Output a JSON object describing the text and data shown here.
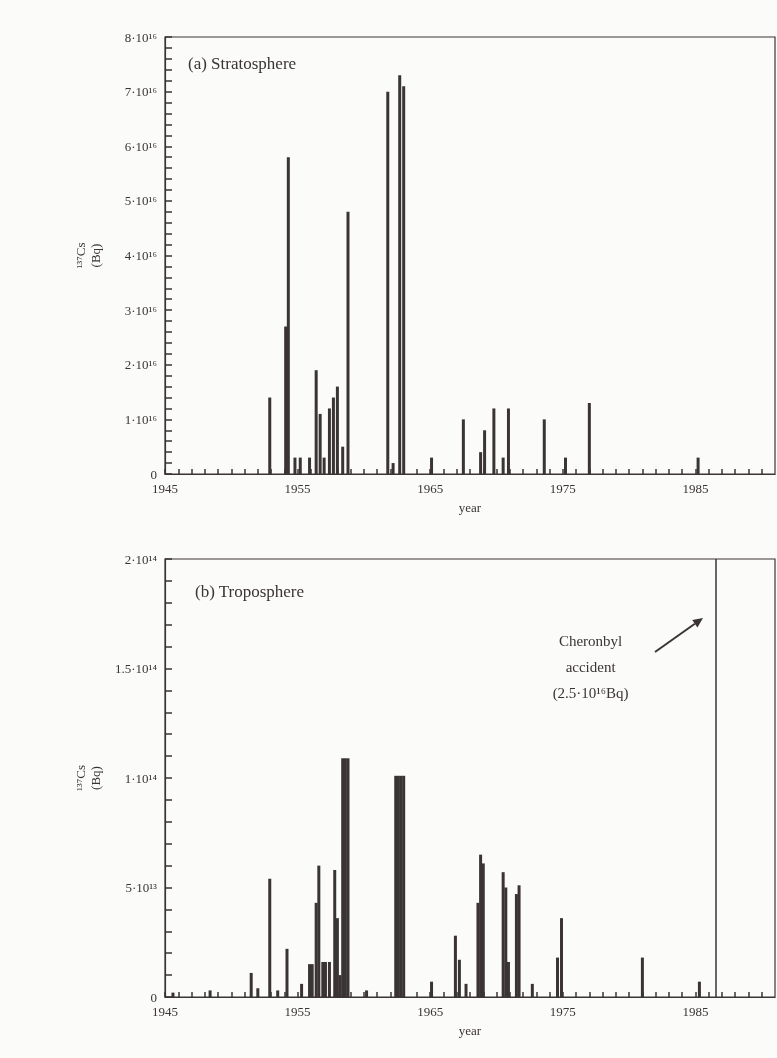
{
  "chart_data": [
    {
      "type": "bar",
      "title": "(a) Stratosphere",
      "xlabel": "year",
      "ylabel": "¹³⁷Cs\n(Bq)",
      "color": "#3a3434",
      "x": [
        1952.9,
        1954.1,
        1954.3,
        1954.8,
        1955.2,
        1955.9,
        1956.4,
        1956.7,
        1957.0,
        1957.4,
        1957.7,
        1958.0,
        1958.4,
        1958.8,
        1961.8,
        1962.2,
        1962.7,
        1963.0,
        1965.1,
        1967.5,
        1968.8,
        1969.1,
        1969.8,
        1970.5,
        1970.9,
        1973.6,
        1975.2,
        1977.0,
        1985.2
      ],
      "values": [
        1.4e+16,
        2.7e+16,
        5.8e+16,
        3000000000000000.0,
        3000000000000000.0,
        3000000000000000.0,
        1.9e+16,
        1.1e+16,
        3000000000000000.0,
        1.2e+16,
        1.4e+16,
        1.6e+16,
        5000000000000000.0,
        4.8e+16,
        7e+16,
        2000000000000000.0,
        7.3e+16,
        7.1e+16,
        3000000000000000.0,
        1e+16,
        4000000000000000.0,
        8000000000000000.0,
        1.2e+16,
        3000000000000000.0,
        1.2e+16,
        1e+16,
        3000000000000000.0,
        1.3e+16,
        3000000000000000.0
      ],
      "xlim": [
        1945,
        1991
      ],
      "xticks": [
        1945,
        {
          "value": 1946,
          "label": null
        },
        {
          "value": 1947,
          "label": null
        },
        {
          "value": 1948,
          "label": null
        },
        {
          "value": 1949,
          "label": null
        },
        {
          "value": 1950,
          "label": null
        },
        {
          "value": 1951,
          "label": null
        },
        {
          "value": 1952,
          "label": null
        },
        {
          "value": 1953,
          "label": null
        },
        {
          "value": 1954,
          "label": null
        },
        1955,
        {
          "value": 1956,
          "label": null
        },
        {
          "value": 1957,
          "label": null
        },
        {
          "value": 1958,
          "label": null
        },
        {
          "value": 1959,
          "label": null
        },
        {
          "value": 1960,
          "label": null
        },
        {
          "value": 1961,
          "label": null
        },
        {
          "value": 1962,
          "label": null
        },
        {
          "value": 1963,
          "label": null
        },
        {
          "value": 1964,
          "label": null
        },
        1965,
        {
          "value": 1966,
          "label": null
        },
        {
          "value": 1967,
          "label": null
        },
        {
          "value": 1968,
          "label": null
        },
        {
          "value": 1969,
          "label": null
        },
        {
          "value": 1970,
          "label": null
        },
        {
          "value": 1971,
          "label": null
        },
        {
          "value": 1972,
          "label": null
        },
        {
          "value": 1973,
          "label": null
        },
        {
          "value": 1974,
          "label": null
        },
        1975,
        {
          "value": 1976,
          "label": null
        },
        {
          "value": 1977,
          "label": null
        },
        {
          "value": 1978,
          "label": null
        },
        {
          "value": 1979,
          "label": null
        },
        {
          "value": 1980,
          "label": null
        },
        {
          "value": 1981,
          "label": null
        },
        {
          "value": 1982,
          "label": null
        },
        {
          "value": 1983,
          "label": null
        },
        {
          "value": 1984,
          "label": null
        },
        1985,
        {
          "value": 1986,
          "label": null
        },
        {
          "value": 1987,
          "label": null
        },
        {
          "value": 1988,
          "label": null
        },
        {
          "value": 1989,
          "label": null
        },
        {
          "value": 1990,
          "label": null
        }
      ],
      "ylim": [
        0,
        8e+16
      ],
      "yticks": [
        0,
        {
          "value": 2000000000000000.0,
          "label": null
        },
        {
          "value": 4000000000000000.0,
          "label": null
        },
        {
          "value": 6000000000000000.0,
          "label": null
        },
        {
          "value": 8000000000000000.0,
          "label": null
        },
        {
          "value": 1e+16,
          "label": "1·10¹⁶"
        },
        {
          "value": 1.2e+16,
          "label": null
        },
        {
          "value": 1.4e+16,
          "label": null
        },
        {
          "value": 1.6e+16,
          "label": null
        },
        {
          "value": 1.8e+16,
          "label": null
        },
        {
          "value": 2e+16,
          "label": "2·10¹⁶"
        },
        {
          "value": 2.2e+16,
          "label": null
        },
        {
          "value": 2.4e+16,
          "label": null
        },
        {
          "value": 2.6e+16,
          "label": null
        },
        {
          "value": 2.8e+16,
          "label": null
        },
        {
          "value": 3e+16,
          "label": "3·10¹⁶"
        },
        {
          "value": 3.2e+16,
          "label": null
        },
        {
          "value": 3.4e+16,
          "label": null
        },
        {
          "value": 3.6e+16,
          "label": null
        },
        {
          "value": 3.8e+16,
          "label": null
        },
        {
          "value": 4e+16,
          "label": "4·10¹⁶"
        },
        {
          "value": 4.2e+16,
          "label": null
        },
        {
          "value": 4.4e+16,
          "label": null
        },
        {
          "value": 4.6e+16,
          "label": null
        },
        {
          "value": 4.8e+16,
          "label": null
        },
        {
          "value": 5e+16,
          "label": "5·10¹⁶"
        },
        {
          "value": 5.2e+16,
          "label": null
        },
        {
          "value": 5.4e+16,
          "label": null
        },
        {
          "value": 5.6e+16,
          "label": null
        },
        {
          "value": 5.8e+16,
          "label": null
        },
        {
          "value": 6e+16,
          "label": "6·10¹⁶"
        },
        {
          "value": 6.2e+16,
          "label": null
        },
        {
          "value": 6.4e+16,
          "label": null
        },
        {
          "value": 6.6e+16,
          "label": null
        },
        {
          "value": 6.8e+16,
          "label": null
        },
        {
          "value": 7e+16,
          "label": "7·10¹⁶"
        },
        {
          "value": 7.2e+16,
          "label": null
        },
        {
          "value": 7.4e+16,
          "label": null
        },
        {
          "value": 7.6e+16,
          "label": null
        },
        {
          "value": 7.8e+16,
          "label": null
        },
        {
          "value": 8e+16,
          "label": "8·10¹⁶"
        }
      ]
    },
    {
      "type": "bar",
      "title": "(b) Troposphere",
      "xlabel": "year",
      "ylabel": "¹³⁷Cs\n(Bq)",
      "color": "#3a3434",
      "x": [
        1945.6,
        1948.4,
        1951.5,
        1952.0,
        1952.9,
        1953.5,
        1954.2,
        1955.3,
        1955.9,
        1956.1,
        1956.4,
        1956.6,
        1956.9,
        1957.1,
        1957.4,
        1957.8,
        1958.0,
        1958.2,
        1958.4,
        1958.6,
        1958.8,
        1960.2,
        1962.4,
        1962.6,
        1962.8,
        1963.0,
        1965.1,
        1966.9,
        1967.2,
        1967.7,
        1968.6,
        1968.8,
        1969.0,
        1970.5,
        1970.7,
        1970.9,
        1971.5,
        1971.7,
        1972.7,
        1974.6,
        1974.9,
        1981.0,
        1985.3
      ],
      "values": [
        2000000000000.0,
        3000000000000.0,
        11000000000000.0,
        4000000000000.0,
        54000000000000.0,
        3000000000000.0,
        22000000000000.0,
        6000000000000.0,
        15000000000000.0,
        15000000000000.0,
        43000000000000.0,
        60000000000000.0,
        16000000000000.0,
        16000000000000.0,
        16000000000000.0,
        58000000000000.0,
        36000000000000.0,
        10000000000000.0,
        109000000000000.0,
        109000000000000.0,
        109000000000000.0,
        3000000000000.0,
        101000000000000.0,
        101000000000000.0,
        101000000000000.0,
        101000000000000.0,
        7000000000000.0,
        28000000000000.0,
        17000000000000.0,
        6000000000000.0,
        43000000000000.0,
        65000000000000.0,
        61000000000000.0,
        57000000000000.0,
        50000000000000.0,
        16000000000000.0,
        47000000000000.0,
        51000000000000.0,
        6000000000000.0,
        18000000000000.0,
        36000000000000.0,
        18000000000000.0,
        7000000000000.0
      ],
      "xlim": [
        1945,
        1991
      ],
      "xticks": [
        1945,
        {
          "value": 1946,
          "label": null
        },
        {
          "value": 1947,
          "label": null
        },
        {
          "value": 1948,
          "label": null
        },
        {
          "value": 1949,
          "label": null
        },
        {
          "value": 1950,
          "label": null
        },
        {
          "value": 1951,
          "label": null
        },
        {
          "value": 1952,
          "label": null
        },
        {
          "value": 1953,
          "label": null
        },
        {
          "value": 1954,
          "label": null
        },
        1955,
        {
          "value": 1956,
          "label": null
        },
        {
          "value": 1957,
          "label": null
        },
        {
          "value": 1958,
          "label": null
        },
        {
          "value": 1959,
          "label": null
        },
        {
          "value": 1960,
          "label": null
        },
        {
          "value": 1961,
          "label": null
        },
        {
          "value": 1962,
          "label": null
        },
        {
          "value": 1963,
          "label": null
        },
        {
          "value": 1964,
          "label": null
        },
        1965,
        {
          "value": 1966,
          "label": null
        },
        {
          "value": 1967,
          "label": null
        },
        {
          "value": 1968,
          "label": null
        },
        {
          "value": 1969,
          "label": null
        },
        {
          "value": 1970,
          "label": null
        },
        {
          "value": 1971,
          "label": null
        },
        {
          "value": 1972,
          "label": null
        },
        {
          "value": 1973,
          "label": null
        },
        {
          "value": 1974,
          "label": null
        },
        1975,
        {
          "value": 1976,
          "label": null
        },
        {
          "value": 1977,
          "label": null
        },
        {
          "value": 1978,
          "label": null
        },
        {
          "value": 1979,
          "label": null
        },
        {
          "value": 1980,
          "label": null
        },
        {
          "value": 1981,
          "label": null
        },
        {
          "value": 1982,
          "label": null
        },
        {
          "value": 1983,
          "label": null
        },
        {
          "value": 1984,
          "label": null
        },
        1985,
        {
          "value": 1986,
          "label": null
        },
        {
          "value": 1987,
          "label": null
        },
        {
          "value": 1988,
          "label": null
        },
        {
          "value": 1989,
          "label": null
        },
        {
          "value": 1990,
          "label": null
        }
      ],
      "ylim": [
        0,
        200000000000000.0
      ],
      "yticks": [
        0,
        {
          "value": 10000000000000.0,
          "label": null
        },
        {
          "value": 20000000000000.0,
          "label": null
        },
        {
          "value": 30000000000000.0,
          "label": null
        },
        {
          "value": 40000000000000.0,
          "label": null
        },
        {
          "value": 50000000000000.0,
          "label": "5·10¹³"
        },
        {
          "value": 60000000000000.0,
          "label": null
        },
        {
          "value": 70000000000000.0,
          "label": null
        },
        {
          "value": 80000000000000.0,
          "label": null
        },
        {
          "value": 90000000000000.0,
          "label": null
        },
        {
          "value": 100000000000000.0,
          "label": "1·10¹⁴"
        },
        {
          "value": 110000000000000.0,
          "label": null
        },
        {
          "value": 120000000000000.0,
          "label": null
        },
        {
          "value": 130000000000000.0,
          "label": null
        },
        {
          "value": 140000000000000.0,
          "label": null
        },
        {
          "value": 150000000000000.0,
          "label": "1.5·10¹⁴"
        },
        {
          "value": 160000000000000.0,
          "label": null
        },
        {
          "value": 170000000000000.0,
          "label": null
        },
        {
          "value": 180000000000000.0,
          "label": null
        },
        {
          "value": 190000000000000.0,
          "label": null
        },
        {
          "value": 200000000000000.0,
          "label": "2·10¹⁴"
        }
      ],
      "ref_lines": [
        {
          "axis": "x",
          "value": 1986.5,
          "color": "#3a3434",
          "line_style": "solid"
        }
      ],
      "annotations": [
        "Cheronbyl\naccident\n(2.5·10¹⁶Bq)"
      ]
    }
  ]
}
